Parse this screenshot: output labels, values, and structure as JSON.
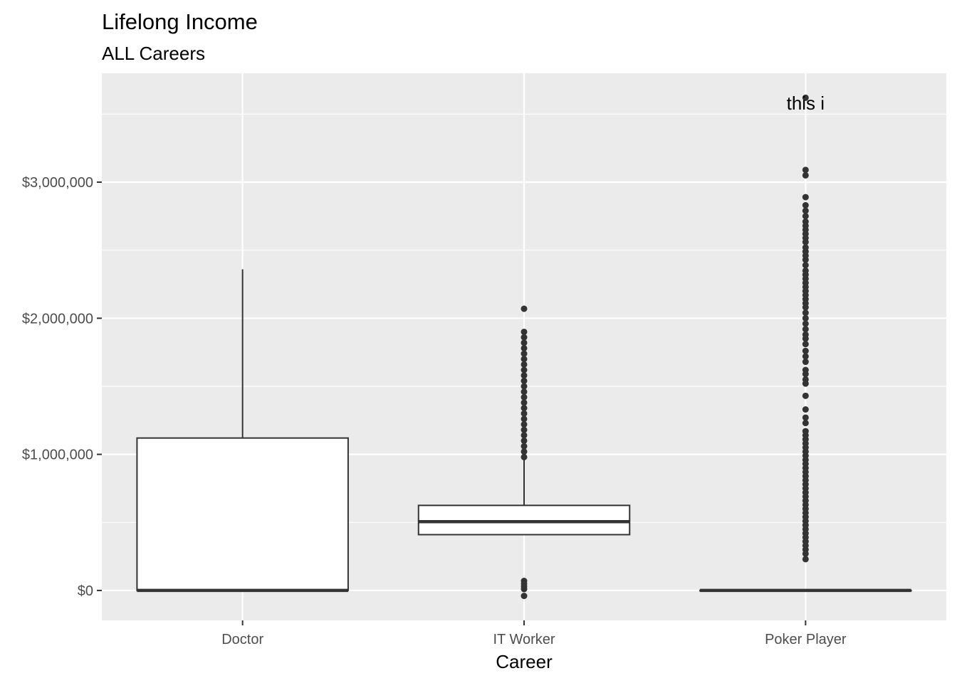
{
  "chart_data": {
    "type": "boxplot",
    "title": "Lifelong Income",
    "subtitle": "ALL Careers",
    "xlabel": "Career",
    "ylabel": "",
    "ylim": [
      -220000,
      3800000
    ],
    "y_ticks": [
      0,
      1000000,
      2000000,
      3000000
    ],
    "y_tick_labels": [
      "$0",
      "$1,000,000",
      "$2,000,000",
      "$3,000,000"
    ],
    "grid": true,
    "categories": [
      "Doctor",
      "IT Worker",
      "Poker Player"
    ],
    "boxes": [
      {
        "category": "Doctor",
        "lower_whisker": 0,
        "q1": 0,
        "median": 0,
        "q3": 1120000,
        "upper_whisker": 2360000,
        "outliers": []
      },
      {
        "category": "IT Worker",
        "lower_whisker": 410000,
        "q1": 410000,
        "median": 505000,
        "q3": 625000,
        "upper_whisker": 960000,
        "outliers": [
          2070000,
          1900000,
          1860000,
          1820000,
          1780000,
          1740000,
          1700000,
          1660000,
          1620000,
          1580000,
          1540000,
          1500000,
          1460000,
          1420000,
          1380000,
          1340000,
          1300000,
          1260000,
          1220000,
          1180000,
          1140000,
          1100000,
          1060000,
          1020000,
          980000,
          70000,
          50000,
          30000,
          10000,
          -40000
        ]
      },
      {
        "category": "Poker Player",
        "lower_whisker": 0,
        "q1": 0,
        "median": 0,
        "q3": 0,
        "upper_whisker": 0,
        "outliers": [
          3620000,
          3090000,
          3050000,
          2890000,
          2830000,
          2790000,
          2750000,
          2710000,
          2680000,
          2650000,
          2620000,
          2590000,
          2560000,
          2520000,
          2490000,
          2460000,
          2430000,
          2390000,
          2350000,
          2320000,
          2290000,
          2260000,
          2230000,
          2200000,
          2170000,
          2140000,
          2110000,
          2080000,
          2040000,
          2000000,
          1960000,
          1920000,
          1880000,
          1850000,
          1810000,
          1760000,
          1720000,
          1680000,
          1620000,
          1590000,
          1550000,
          1520000,
          1430000,
          1330000,
          1270000,
          1230000,
          1170000,
          1140000,
          1110000,
          1080000,
          1050000,
          1020000,
          990000,
          960000,
          930000,
          900000,
          870000,
          840000,
          810000,
          780000,
          750000,
          720000,
          690000,
          660000,
          630000,
          600000,
          570000,
          540000,
          510000,
          480000,
          450000,
          420000,
          390000,
          360000,
          330000,
          300000,
          270000,
          230000
        ]
      }
    ],
    "annotations": [
      {
        "text": "this i",
        "category": "Poker Player",
        "y": 3580000
      }
    ],
    "colors": {
      "panel": "#ebebeb",
      "grid_major": "#ffffff",
      "box_fill": "#ffffff",
      "box_line": "#333333",
      "point": "#333333",
      "tick_text": "#4d4d4d"
    }
  }
}
